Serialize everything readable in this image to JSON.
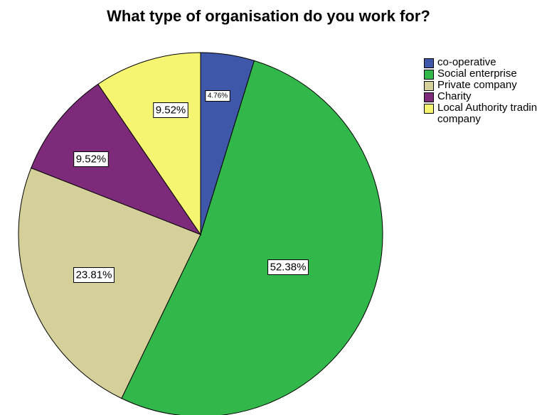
{
  "chart_data": {
    "type": "pie",
    "title": "What type of organisation do you work for?",
    "slices": [
      {
        "name": "co-operative",
        "value": 4.76,
        "label": "4.76%",
        "color": "#3f57a8"
      },
      {
        "name": "Social enterprise",
        "value": 52.38,
        "label": "52.38%",
        "color": "#32b84a"
      },
      {
        "name": "Private company",
        "value": 23.81,
        "label": "23.81%",
        "color": "#d5cf9a"
      },
      {
        "name": "Charity",
        "value": 9.52,
        "label": "9.52%",
        "color": "#7d2a7a"
      },
      {
        "name": "Local Authority trading company",
        "value": 9.52,
        "label": "9.52%",
        "color": "#f5f571"
      }
    ],
    "legend_placement": "top-right"
  }
}
